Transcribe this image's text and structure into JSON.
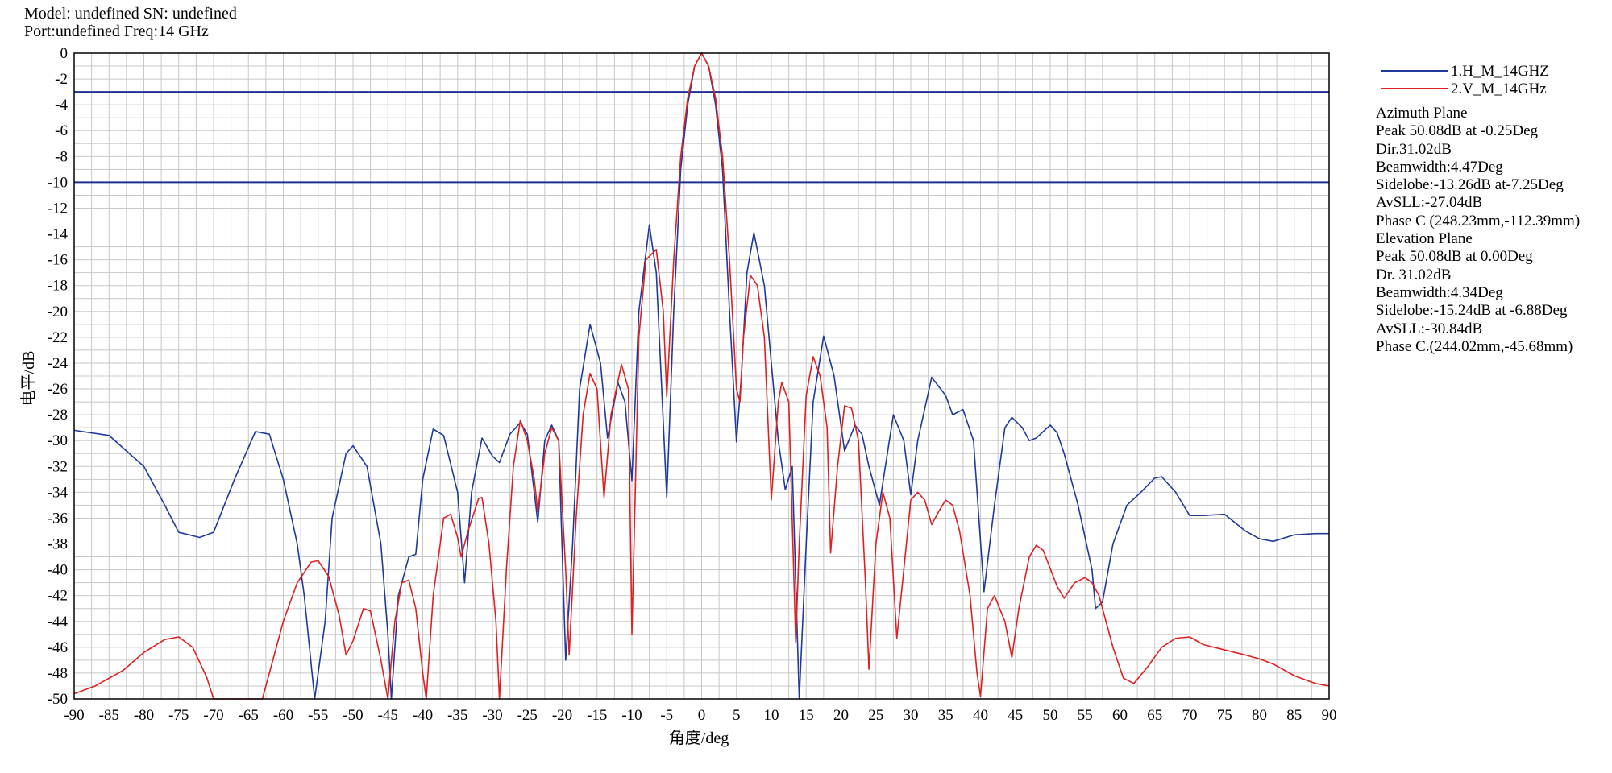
{
  "header": {
    "line1": "Model: undefined SN: undefined",
    "line2": "Port:undefined Freq:14 GHz"
  },
  "info": {
    "azimuth": [
      "Azimuth Plane",
      "Peak 50.08dB at -0.25Deg",
      "Dir.31.02dB",
      "Beamwidth:4.47Deg",
      "Sidelobe:-13.26dB at-7.25Deg",
      "AvSLL:-27.04dB",
      "Phase C (248.23mm,-112.39mm)"
    ],
    "elevation": [
      "Elevation Plane",
      "Peak 50.08dB at 0.00Deg",
      "Dr. 31.02dB",
      "Beamwidth:4.34Deg",
      "Sidelobe:-15.24dB at -6.88Deg",
      "AvSLL:-30.84dB",
      "Phase C.(244.02mm,-45.68mm)"
    ]
  },
  "chart_data": {
    "type": "line",
    "xlabel": "角度/deg",
    "ylabel": "电平/dB",
    "xlim": [
      -90,
      90
    ],
    "ylim": [
      -50,
      0
    ],
    "xticks": [
      -90,
      -85,
      -80,
      -75,
      -70,
      -65,
      -60,
      -55,
      -50,
      -45,
      -40,
      -35,
      -30,
      -25,
      -20,
      -15,
      -10,
      -5,
      0,
      5,
      10,
      15,
      20,
      25,
      30,
      35,
      40,
      45,
      50,
      55,
      60,
      65,
      70,
      75,
      80,
      85,
      90
    ],
    "yticks": [
      0,
      -2,
      -4,
      -6,
      -8,
      -10,
      -12,
      -14,
      -16,
      -18,
      -20,
      -22,
      -24,
      -26,
      -28,
      -30,
      -32,
      -34,
      -36,
      -38,
      -40,
      -42,
      -44,
      -46,
      -48,
      -50
    ],
    "grid": true,
    "legend_position": "top-right",
    "reference_lines": [
      -3,
      -10
    ],
    "reference_color": "#1f2f8f",
    "series": [
      {
        "name": "1.H_M_14GHZ",
        "color": "#1f3a9c",
        "points": [
          [
            -90,
            -29.2
          ],
          [
            -85,
            -29.6
          ],
          [
            -80,
            -32
          ],
          [
            -77,
            -35
          ],
          [
            -75,
            -37.1
          ],
          [
            -72,
            -37.5
          ],
          [
            -70,
            -37.1
          ],
          [
            -67,
            -33
          ],
          [
            -64,
            -29.3
          ],
          [
            -62,
            -29.5
          ],
          [
            -60,
            -33
          ],
          [
            -58,
            -38
          ],
          [
            -57,
            -42
          ],
          [
            -55.5,
            -50
          ],
          [
            -54,
            -44
          ],
          [
            -53,
            -36
          ],
          [
            -51,
            -31
          ],
          [
            -50,
            -30.4
          ],
          [
            -48,
            -32
          ],
          [
            -46,
            -38
          ],
          [
            -45,
            -45
          ],
          [
            -44.5,
            -50
          ],
          [
            -43.5,
            -42
          ],
          [
            -42,
            -39
          ],
          [
            -41,
            -38.8
          ],
          [
            -40,
            -33
          ],
          [
            -38.5,
            -29.1
          ],
          [
            -37,
            -29.6
          ],
          [
            -35,
            -34
          ],
          [
            -34,
            -41
          ],
          [
            -33,
            -34
          ],
          [
            -31.5,
            -29.8
          ],
          [
            -30,
            -31.2
          ],
          [
            -29,
            -31.7
          ],
          [
            -27.5,
            -29.5
          ],
          [
            -26,
            -28.6
          ],
          [
            -25,
            -29.5
          ],
          [
            -23.5,
            -36.3
          ],
          [
            -22.5,
            -30
          ],
          [
            -21.5,
            -28.8
          ],
          [
            -20.5,
            -30
          ],
          [
            -19.5,
            -47
          ],
          [
            -18.5,
            -38
          ],
          [
            -17.5,
            -26
          ],
          [
            -16,
            -21
          ],
          [
            -14.5,
            -24
          ],
          [
            -13.5,
            -29.8
          ],
          [
            -12,
            -25.5
          ],
          [
            -11,
            -27
          ],
          [
            -10,
            -33.1
          ],
          [
            -9,
            -20
          ],
          [
            -7.5,
            -13.3
          ],
          [
            -6.5,
            -17
          ],
          [
            -5,
            -34.4
          ],
          [
            -4,
            -20
          ],
          [
            -3,
            -9
          ],
          [
            -2,
            -4
          ],
          [
            -1,
            -1
          ],
          [
            0,
            0
          ],
          [
            1,
            -1
          ],
          [
            2,
            -4
          ],
          [
            3,
            -9
          ],
          [
            4,
            -20
          ],
          [
            5,
            -30.1
          ],
          [
            5.7,
            -25
          ],
          [
            6.5,
            -17
          ],
          [
            7.5,
            -13.9
          ],
          [
            9,
            -18
          ],
          [
            10,
            -24
          ],
          [
            11,
            -30
          ],
          [
            12,
            -33.8
          ],
          [
            13,
            -32
          ],
          [
            14,
            -50
          ],
          [
            15,
            -38
          ],
          [
            16,
            -27
          ],
          [
            17.5,
            -21.9
          ],
          [
            19,
            -25
          ],
          [
            20.5,
            -30.8
          ],
          [
            22,
            -28.8
          ],
          [
            23,
            -29.5
          ],
          [
            24,
            -32
          ],
          [
            25.5,
            -35
          ],
          [
            27.5,
            -28
          ],
          [
            29,
            -30
          ],
          [
            30,
            -34.2
          ],
          [
            31,
            -30
          ],
          [
            33,
            -25.1
          ],
          [
            35,
            -26.5
          ],
          [
            36,
            -28
          ],
          [
            37.5,
            -27.6
          ],
          [
            39,
            -30
          ],
          [
            40.5,
            -41.7
          ],
          [
            42,
            -35
          ],
          [
            43.5,
            -29
          ],
          [
            44.5,
            -28.2
          ],
          [
            46,
            -29
          ],
          [
            47,
            -30
          ],
          [
            48,
            -29.8
          ],
          [
            50,
            -28.8
          ],
          [
            51,
            -29.4
          ],
          [
            52,
            -31
          ],
          [
            54,
            -35
          ],
          [
            56,
            -40
          ],
          [
            56.5,
            -43
          ],
          [
            57.5,
            -42.5
          ],
          [
            59,
            -38
          ],
          [
            61,
            -35
          ],
          [
            63,
            -34
          ],
          [
            65,
            -32.9
          ],
          [
            66,
            -32.8
          ],
          [
            68,
            -34
          ],
          [
            70,
            -35.8
          ],
          [
            72,
            -35.8
          ],
          [
            75,
            -35.7
          ],
          [
            78,
            -37
          ],
          [
            80,
            -37.6
          ],
          [
            82,
            -37.8
          ],
          [
            85,
            -37.3
          ],
          [
            88,
            -37.2
          ],
          [
            90,
            -37.2
          ]
        ]
      },
      {
        "name": "2.V_M_14GHz",
        "color": "#e02020",
        "points": [
          [
            -90,
            -49.6
          ],
          [
            -87,
            -49
          ],
          [
            -83,
            -47.8
          ],
          [
            -80,
            -46.4
          ],
          [
            -77,
            -45.4
          ],
          [
            -75,
            -45.2
          ],
          [
            -73,
            -46
          ],
          [
            -71,
            -48.3
          ],
          [
            -70,
            -50
          ],
          [
            -63,
            -50
          ],
          [
            -62,
            -48
          ],
          [
            -60,
            -44
          ],
          [
            -58,
            -41
          ],
          [
            -56,
            -39.4
          ],
          [
            -55,
            -39.3
          ],
          [
            -53.5,
            -40.5
          ],
          [
            -52,
            -43.5
          ],
          [
            -51,
            -46.6
          ],
          [
            -50,
            -45.5
          ],
          [
            -48.5,
            -43
          ],
          [
            -47.5,
            -43.2
          ],
          [
            -46,
            -47
          ],
          [
            -45,
            -50
          ],
          [
            -44,
            -44
          ],
          [
            -43,
            -41
          ],
          [
            -42,
            -40.8
          ],
          [
            -41,
            -43
          ],
          [
            -40,
            -48
          ],
          [
            -39.5,
            -50
          ],
          [
            -38.5,
            -42
          ],
          [
            -37,
            -36
          ],
          [
            -36,
            -35.7
          ],
          [
            -35,
            -37.5
          ],
          [
            -34.5,
            -39
          ],
          [
            -33.5,
            -37
          ],
          [
            -32,
            -34.5
          ],
          [
            -31.5,
            -34.4
          ],
          [
            -30.5,
            -38
          ],
          [
            -29.5,
            -44
          ],
          [
            -29,
            -50
          ],
          [
            -28,
            -40
          ],
          [
            -27,
            -32
          ],
          [
            -26,
            -28.4
          ],
          [
            -25,
            -30
          ],
          [
            -24,
            -33
          ],
          [
            -23.5,
            -35.5
          ],
          [
            -22.5,
            -31
          ],
          [
            -21.5,
            -29
          ],
          [
            -20.5,
            -30
          ],
          [
            -19.5,
            -40
          ],
          [
            -19,
            -46.6
          ],
          [
            -18,
            -36
          ],
          [
            -17,
            -28
          ],
          [
            -16,
            -24.8
          ],
          [
            -15,
            -26
          ],
          [
            -14,
            -34.4
          ],
          [
            -13,
            -28
          ],
          [
            -11.5,
            -24.1
          ],
          [
            -10.5,
            -26
          ],
          [
            -10,
            -45
          ],
          [
            -9,
            -22
          ],
          [
            -8,
            -16
          ],
          [
            -6.5,
            -15.2
          ],
          [
            -5.5,
            -20
          ],
          [
            -5,
            -26.6
          ],
          [
            -4,
            -16
          ],
          [
            -3,
            -8
          ],
          [
            -2,
            -3.5
          ],
          [
            -1,
            -1
          ],
          [
            0,
            0
          ],
          [
            1,
            -1
          ],
          [
            2,
            -3.5
          ],
          [
            3,
            -8
          ],
          [
            4,
            -16
          ],
          [
            5,
            -26
          ],
          [
            5.5,
            -27
          ],
          [
            6,
            -22
          ],
          [
            7,
            -17.2
          ],
          [
            8,
            -18
          ],
          [
            9,
            -22
          ],
          [
            10,
            -34.6
          ],
          [
            11,
            -27
          ],
          [
            11.5,
            -25.5
          ],
          [
            12.5,
            -27
          ],
          [
            13.5,
            -45.6
          ],
          [
            14,
            -38
          ],
          [
            15,
            -26.5
          ],
          [
            16,
            -23.5
          ],
          [
            17,
            -25
          ],
          [
            18,
            -29
          ],
          [
            18.5,
            -38.7
          ],
          [
            19.5,
            -32
          ],
          [
            20.5,
            -27.3
          ],
          [
            21.5,
            -27.5
          ],
          [
            22.5,
            -30
          ],
          [
            23.5,
            -41
          ],
          [
            24,
            -47.7
          ],
          [
            25,
            -38
          ],
          [
            26,
            -34
          ],
          [
            27,
            -36
          ],
          [
            28,
            -45.3
          ],
          [
            29,
            -40
          ],
          [
            30,
            -34.6
          ],
          [
            31,
            -34
          ],
          [
            32,
            -34.6
          ],
          [
            33,
            -36.5
          ],
          [
            34,
            -35.5
          ],
          [
            35,
            -34.6
          ],
          [
            36,
            -35
          ],
          [
            37,
            -37
          ],
          [
            38.5,
            -42
          ],
          [
            39.5,
            -48
          ],
          [
            40,
            -49.8
          ],
          [
            41,
            -43
          ],
          [
            42,
            -42
          ],
          [
            43.5,
            -44
          ],
          [
            44.5,
            -46.8
          ],
          [
            45.5,
            -43
          ],
          [
            47,
            -39
          ],
          [
            48,
            -38.1
          ],
          [
            49,
            -38.5
          ],
          [
            51,
            -41.3
          ],
          [
            52,
            -42.2
          ],
          [
            53.5,
            -41
          ],
          [
            55,
            -40.6
          ],
          [
            56,
            -41
          ],
          [
            57,
            -42
          ],
          [
            58,
            -44
          ],
          [
            59,
            -46
          ],
          [
            60.5,
            -48.4
          ],
          [
            62,
            -48.8
          ],
          [
            64,
            -47.5
          ],
          [
            66,
            -46
          ],
          [
            68,
            -45.3
          ],
          [
            70,
            -45.2
          ],
          [
            72,
            -45.8
          ],
          [
            75,
            -46.2
          ],
          [
            78,
            -46.6
          ],
          [
            80,
            -46.9
          ],
          [
            82,
            -47.3
          ],
          [
            85,
            -48.2
          ],
          [
            88,
            -48.8
          ],
          [
            90,
            -49
          ]
        ]
      }
    ]
  }
}
